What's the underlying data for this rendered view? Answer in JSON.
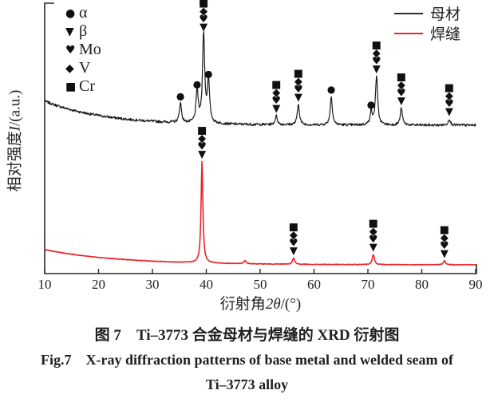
{
  "figure": {
    "caption_zh": "图 7　Ti–3773 合金母材与焊缝的 XRD 衍射图",
    "caption_en_line1": "Fig.7　X-ray diffraction patterns of base metal and welded seam of",
    "caption_en_line2": "Ti–3773 alloy"
  },
  "axes": {
    "xlabel": {
      "prefix": "衍射角",
      "italic": "2θ",
      "suffix": "/(°)"
    },
    "ylabel": {
      "prefix": "相对强度",
      "italic": "I",
      "suffix": "/(a.u.)"
    }
  },
  "phase_legend": {
    "items": [
      {
        "symbol": "●",
        "label": "α"
      },
      {
        "symbol": "▼",
        "label": "β"
      },
      {
        "symbol": "♥",
        "label": "Mo"
      },
      {
        "symbol": "◆",
        "label": "V"
      },
      {
        "symbol": "■",
        "label": "Cr"
      }
    ]
  },
  "series_legend": {
    "items": [
      {
        "label": "母材",
        "color": "#2e2e2e"
      },
      {
        "label": "焊缝",
        "color": "#e8232a"
      }
    ]
  },
  "chart_data": {
    "type": "line",
    "title": "",
    "xlabel": "衍射角2θ/(°)",
    "ylabel": "相对强度I/(a.u.)",
    "xlim": [
      10,
      90
    ],
    "x_ticks": [
      10,
      20,
      30,
      40,
      50,
      60,
      70,
      80,
      90
    ],
    "y_axis": "arbitrary units, no ticks",
    "legend_position": "top-right",
    "grid": false,
    "phase_symbols": {
      "α": "●",
      "β": "▼",
      "Mo": "♥",
      "V": "◆",
      "Cr": "■"
    },
    "series": [
      {
        "name": "母材",
        "color": "#1c1c1c",
        "noise": 2.8,
        "background": {
          "amplitude": 27,
          "decay": 11
        },
        "peaks": [
          {
            "two_theta": 35.2,
            "intensity": 22,
            "phases": [
              "α"
            ]
          },
          {
            "two_theta": 38.3,
            "intensity": 36,
            "phases": [
              "α"
            ]
          },
          {
            "two_theta": 39.5,
            "intensity": 100,
            "phases": [
              "β",
              "Mo",
              "V",
              "Cr"
            ]
          },
          {
            "two_theta": 40.4,
            "intensity": 48,
            "phases": [
              "α"
            ]
          },
          {
            "two_theta": 53.0,
            "intensity": 10,
            "phases": [
              "β",
              "Mo",
              "V",
              "Cr"
            ]
          },
          {
            "two_theta": 57.1,
            "intensity": 23,
            "phases": [
              "β",
              "Mo",
              "V",
              "Cr"
            ]
          },
          {
            "two_theta": 63.2,
            "intensity": 32,
            "phases": [
              "α"
            ]
          },
          {
            "two_theta": 70.6,
            "intensity": 15,
            "phases": [
              "α"
            ]
          },
          {
            "two_theta": 71.6,
            "intensity": 55,
            "phases": [
              "β",
              "Mo",
              "V",
              "Cr"
            ]
          },
          {
            "two_theta": 76.2,
            "intensity": 19,
            "phases": [
              "β",
              "Mo",
              "V",
              "Cr"
            ]
          },
          {
            "two_theta": 85.1,
            "intensity": 7,
            "phases": [
              "β",
              "Mo",
              "V",
              "Cr"
            ]
          }
        ]
      },
      {
        "name": "焊缝",
        "color": "#e8232a",
        "noise": 0.6,
        "background": {
          "amplitude": 15,
          "decay": 14
        },
        "peaks": [
          {
            "two_theta": 39.2,
            "intensity": 100,
            "width": 0.2,
            "phases": [
              "β",
              "Mo",
              "V",
              "Cr"
            ]
          },
          {
            "two_theta": 47.2,
            "intensity": 3,
            "phases": []
          },
          {
            "two_theta": 56.2,
            "intensity": 6,
            "phases": [
              "β",
              "Mo",
              "V",
              "Cr"
            ]
          },
          {
            "two_theta": 71.0,
            "intensity": 10,
            "phases": [
              "β",
              "Mo",
              "V",
              "Cr"
            ]
          },
          {
            "two_theta": 84.2,
            "intensity": 4,
            "phases": [
              "β",
              "Mo",
              "V",
              "Cr"
            ]
          }
        ]
      }
    ]
  }
}
